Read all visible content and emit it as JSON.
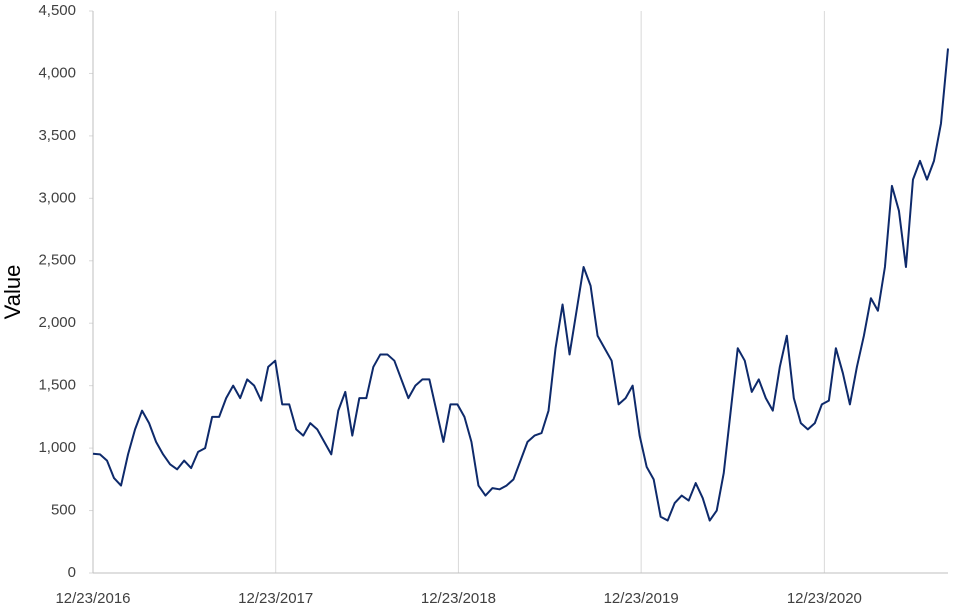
{
  "chart_data": {
    "type": "line",
    "y_label": "Value",
    "grid": true,
    "x_grid": true,
    "y_grid": false,
    "xlim": [
      "12/23/2016",
      "08/27/2021"
    ],
    "xticks": [
      "12/23/2016",
      "12/23/2017",
      "12/23/2018",
      "12/23/2019",
      "12/23/2020"
    ],
    "ylim": [
      0,
      4500
    ],
    "yticks": [
      0,
      500,
      {
        "value": 1000,
        "label": "1,000"
      },
      {
        "value": 1500,
        "label": "1,500"
      },
      {
        "value": 2000,
        "label": "2,000"
      },
      {
        "value": 2500,
        "label": "2,500"
      },
      {
        "value": 3000,
        "label": "3,000"
      },
      {
        "value": 3500,
        "label": "3,500"
      },
      {
        "value": 4000,
        "label": "4,000"
      },
      {
        "value": 4500,
        "label": "4,500"
      }
    ],
    "x": [
      "12/23/2016",
      "01/06/2017",
      "01/20/2017",
      "02/03/2017",
      "02/17/2017",
      "03/03/2017",
      "03/17/2017",
      "03/31/2017",
      "04/14/2017",
      "04/28/2017",
      "05/12/2017",
      "05/26/2017",
      "06/09/2017",
      "06/23/2017",
      "07/07/2017",
      "07/21/2017",
      "08/04/2017",
      "08/18/2017",
      "09/01/2017",
      "09/15/2017",
      "09/29/2017",
      "10/13/2017",
      "10/27/2017",
      "11/10/2017",
      "11/24/2017",
      "12/08/2017",
      "12/22/2017",
      "01/05/2018",
      "01/19/2018",
      "02/02/2018",
      "02/16/2018",
      "03/02/2018",
      "03/16/2018",
      "03/30/2018",
      "04/13/2018",
      "04/27/2018",
      "05/11/2018",
      "05/25/2018",
      "06/08/2018",
      "06/22/2018",
      "07/06/2018",
      "07/20/2018",
      "08/03/2018",
      "08/17/2018",
      "08/31/2018",
      "09/14/2018",
      "09/28/2018",
      "10/12/2018",
      "10/26/2018",
      "11/09/2018",
      "11/23/2018",
      "12/07/2018",
      "12/21/2018",
      "01/04/2019",
      "01/18/2019",
      "02/01/2019",
      "02/15/2019",
      "03/01/2019",
      "03/15/2019",
      "03/29/2019",
      "04/12/2019",
      "04/26/2019",
      "05/10/2019",
      "05/24/2019",
      "06/07/2019",
      "06/21/2019",
      "07/05/2019",
      "07/19/2019",
      "08/02/2019",
      "08/16/2019",
      "08/30/2019",
      "09/13/2019",
      "09/27/2019",
      "10/11/2019",
      "10/25/2019",
      "11/08/2019",
      "11/22/2019",
      "12/06/2019",
      "12/20/2019",
      "01/03/2020",
      "01/17/2020",
      "01/31/2020",
      "02/14/2020",
      "02/28/2020",
      "03/13/2020",
      "03/27/2020",
      "04/10/2020",
      "04/24/2020",
      "05/08/2020",
      "05/22/2020",
      "06/05/2020",
      "06/19/2020",
      "07/03/2020",
      "07/17/2020",
      "07/31/2020",
      "08/14/2020",
      "08/28/2020",
      "09/11/2020",
      "09/25/2020",
      "10/09/2020",
      "10/23/2020",
      "11/06/2020",
      "11/20/2020",
      "12/04/2020",
      "12/18/2020",
      "01/01/2021",
      "01/15/2021",
      "01/29/2021",
      "02/12/2021",
      "02/26/2021",
      "03/12/2021",
      "03/26/2021",
      "04/09/2021",
      "04/23/2021",
      "05/07/2021",
      "05/21/2021",
      "06/04/2021",
      "06/18/2021",
      "07/02/2021",
      "07/16/2021",
      "07/30/2021",
      "08/13/2021",
      "08/27/2021"
    ],
    "series": [
      {
        "color": "#0e2a6b",
        "values": [
          955,
          950,
          900,
          760,
          700,
          950,
          1150,
          1300,
          1200,
          1050,
          950,
          870,
          830,
          900,
          840,
          970,
          1000,
          1250,
          1250,
          1400,
          1500,
          1400,
          1550,
          1500,
          1380,
          1650,
          1700,
          1350,
          1350,
          1150,
          1100,
          1200,
          1150,
          1050,
          950,
          1300,
          1450,
          1100,
          1400,
          1400,
          1650,
          1750,
          1750,
          1700,
          1550,
          1400,
          1500,
          1550,
          1550,
          1300,
          1050,
          1350,
          1350,
          1250,
          1050,
          700,
          620,
          680,
          670,
          700,
          750,
          900,
          1050,
          1100,
          1120,
          1300,
          1800,
          2150,
          1750,
          2100,
          2450,
          2300,
          1900,
          1800,
          1700,
          1350,
          1400,
          1500,
          1100,
          850,
          750,
          450,
          420,
          560,
          620,
          580,
          720,
          600,
          420,
          500,
          800,
          1300,
          1800,
          1700,
          1450,
          1550,
          1400,
          1300,
          1650,
          1900,
          1400,
          1200,
          1150,
          1200,
          1350,
          1380,
          1800,
          1600,
          1350,
          1650,
          1900,
          2200,
          2100,
          2450,
          3100,
          2900,
          2450,
          3150,
          3300,
          3150,
          3300,
          3600,
          4200
        ]
      }
    ]
  }
}
